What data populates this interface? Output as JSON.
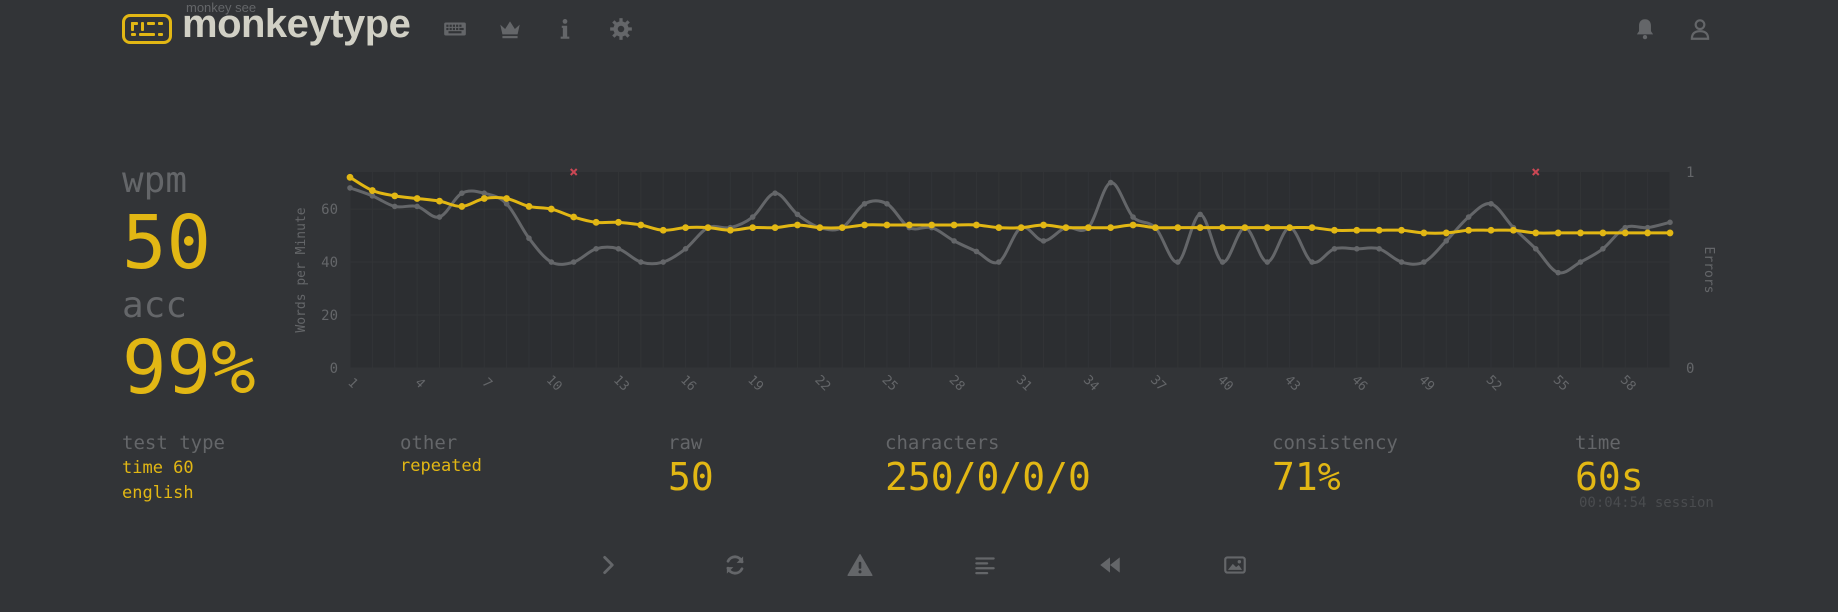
{
  "header": {
    "brand_sub": "monkey see",
    "brand": "monkeytype",
    "nav": [
      {
        "name": "keyboard-icon"
      },
      {
        "name": "crown-icon"
      },
      {
        "name": "info-icon"
      },
      {
        "name": "gear-icon"
      }
    ],
    "right": [
      {
        "name": "bell-icon"
      },
      {
        "name": "user-icon"
      }
    ]
  },
  "stats": {
    "wpm_label": "wpm",
    "wpm_value": "50",
    "acc_label": "acc",
    "acc_value": "99%"
  },
  "more": {
    "test_type_label": "test type",
    "test_type_lines": [
      "time 60",
      "english"
    ],
    "other_label": "other",
    "other_value": "repeated",
    "raw_label": "raw",
    "raw_value": "50",
    "characters_label": "characters",
    "characters_value": "250/0/0/0",
    "consistency_label": "consistency",
    "consistency_value": "71%",
    "time_label": "time",
    "time_value": "60s",
    "session": "00:04:54 session"
  },
  "colors": {
    "bg": "#323437",
    "main": "#e2b714",
    "sub": "#646669",
    "text": "#d1d0c5",
    "error": "#ca4754"
  },
  "chart_data": {
    "type": "line",
    "ylabel": "Words per Minute",
    "y2label": "Errors",
    "ylim": [
      0,
      74
    ],
    "y2lim": [
      0,
      1
    ],
    "yticks": [
      0,
      20,
      40,
      60
    ],
    "y2ticks": [
      0,
      1
    ],
    "x": [
      1,
      2,
      3,
      4,
      5,
      6,
      7,
      8,
      9,
      10,
      11,
      12,
      13,
      14,
      15,
      16,
      17,
      18,
      19,
      20,
      21,
      22,
      23,
      24,
      25,
      26,
      27,
      28,
      29,
      30,
      31,
      32,
      33,
      34,
      35,
      36,
      37,
      38,
      39,
      40,
      41,
      42,
      43,
      44,
      45,
      46,
      47,
      48,
      49,
      50,
      51,
      52,
      53,
      54,
      55,
      56,
      57,
      58,
      59,
      60
    ],
    "xticks": [
      1,
      4,
      7,
      10,
      13,
      16,
      19,
      22,
      25,
      28,
      31,
      34,
      37,
      40,
      43,
      46,
      49,
      52,
      55,
      58
    ],
    "series": [
      {
        "role": "wpm",
        "color": "#e2b714",
        "values": [
          72,
          67,
          65,
          64,
          63,
          61,
          64,
          64,
          61,
          60,
          57,
          55,
          55,
          54,
          52,
          53,
          53,
          52,
          53,
          53,
          54,
          53,
          53,
          54,
          54,
          54,
          54,
          54,
          54,
          53,
          53,
          54,
          53,
          53,
          53,
          54,
          53,
          53,
          53,
          53,
          53,
          53,
          53,
          53,
          52,
          52,
          52,
          52,
          51,
          51,
          52,
          52,
          52,
          51,
          51,
          51,
          51,
          51,
          51,
          51
        ]
      },
      {
        "role": "raw",
        "color": "#646669",
        "values": [
          68,
          65,
          61,
          61,
          57,
          66,
          66,
          62,
          49,
          40,
          40,
          45,
          45,
          40,
          40,
          45,
          53,
          53,
          57,
          66,
          58,
          53,
          53,
          62,
          62,
          53,
          53,
          48,
          44,
          40,
          53,
          48,
          53,
          53,
          70,
          57,
          53,
          40,
          58,
          40,
          53,
          40,
          53,
          40,
          45,
          45,
          45,
          40,
          40,
          48,
          57,
          62,
          53,
          45,
          36,
          40,
          45,
          53,
          53,
          55
        ]
      }
    ],
    "errors": [
      {
        "x": 11,
        "value": 1
      },
      {
        "x": 54,
        "value": 1
      }
    ]
  },
  "bottom_buttons": [
    {
      "name": "next-test-icon"
    },
    {
      "name": "restart-icon"
    },
    {
      "name": "warning-icon"
    },
    {
      "name": "words-history-icon"
    },
    {
      "name": "replay-icon"
    },
    {
      "name": "screenshot-icon"
    }
  ]
}
